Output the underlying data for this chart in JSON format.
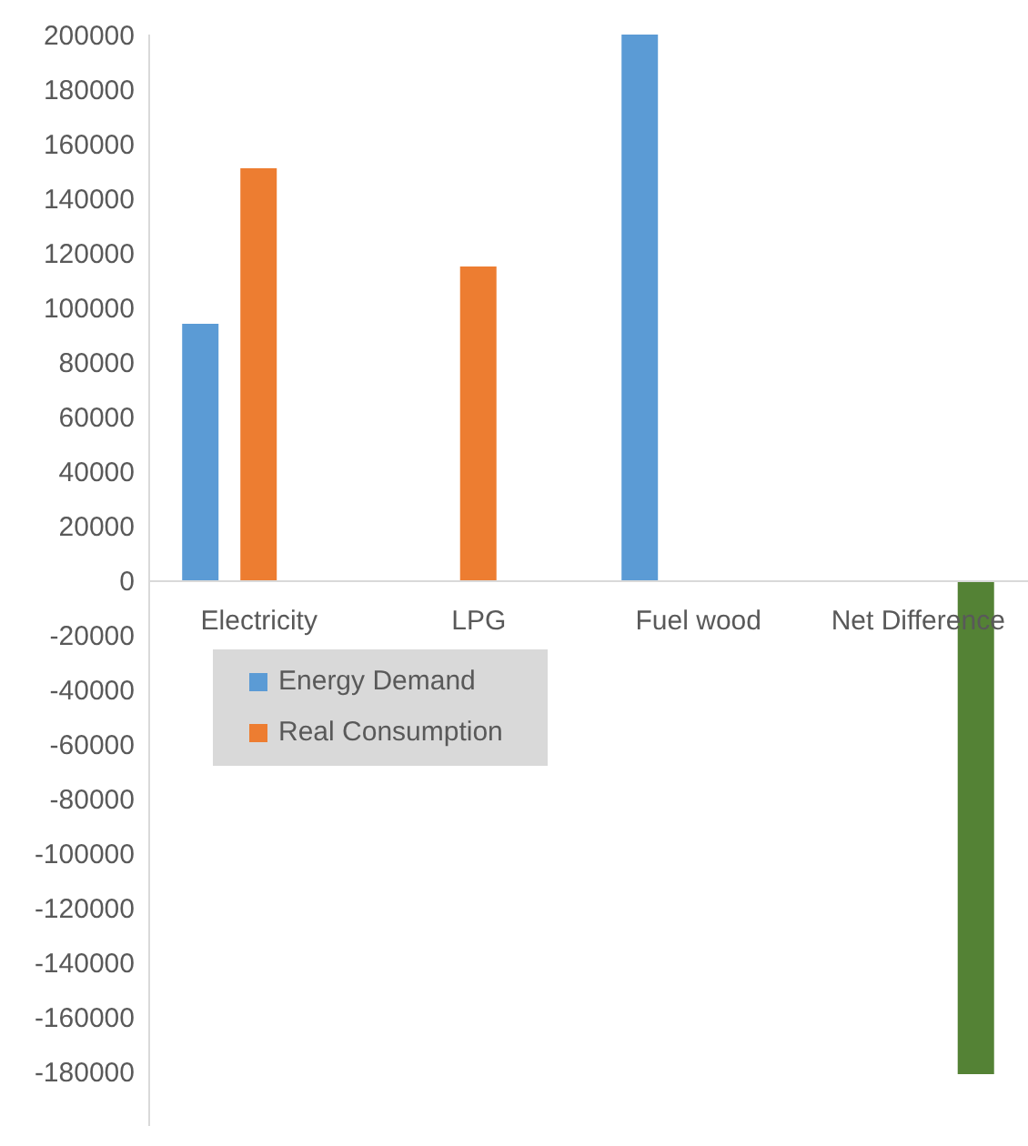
{
  "chart_data": {
    "type": "bar",
    "categories": [
      "Electricity",
      "LPG",
      "Fuel wood",
      "Net Difference"
    ],
    "series": [
      {
        "name": "Energy Demand",
        "color": "#5b9bd5",
        "values": [
          94000,
          null,
          200000,
          null
        ]
      },
      {
        "name": "Real Consumption",
        "color": "#ed7d31",
        "values": [
          151000,
          115000,
          null,
          null
        ]
      },
      {
        "color": "#548235",
        "values": [
          null,
          null,
          null,
          -181000
        ]
      }
    ],
    "ylim": [
      -200000,
      200000
    ],
    "yticks": [
      -180000,
      -160000,
      -140000,
      -120000,
      -100000,
      -80000,
      -60000,
      -40000,
      -20000,
      0,
      20000,
      40000,
      60000,
      80000,
      100000,
      120000,
      140000,
      160000,
      180000,
      200000
    ],
    "legend": "left"
  }
}
